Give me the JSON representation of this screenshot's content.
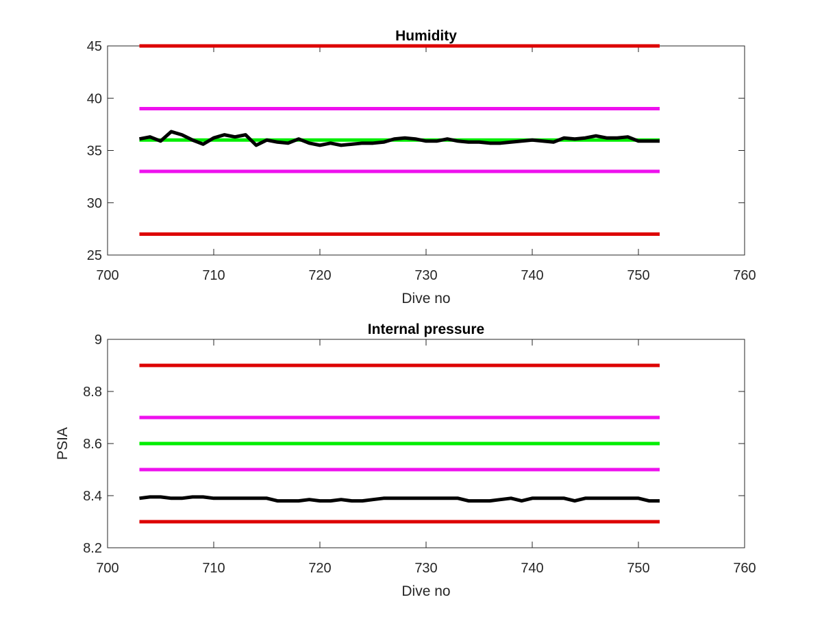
{
  "chart_data": [
    {
      "type": "line",
      "title": "Humidity",
      "xlabel": "Dive no",
      "ylabel": "",
      "xlim": [
        700,
        760
      ],
      "ylim": [
        25,
        45
      ],
      "xticks": [
        700,
        710,
        720,
        730,
        740,
        750,
        760
      ],
      "yticks": [
        25,
        30,
        35,
        40,
        45
      ],
      "xtick_labels": [
        "700",
        "710",
        "720",
        "730",
        "740",
        "750",
        "760"
      ],
      "ytick_labels": [
        "25",
        "30",
        "35",
        "40",
        "45"
      ],
      "grid": false,
      "series": [
        {
          "color": "#dd0000",
          "x": [
            703,
            752
          ],
          "y": [
            45,
            45
          ]
        },
        {
          "color": "#ee11ee",
          "x": [
            703,
            752
          ],
          "y": [
            39,
            39
          ]
        },
        {
          "color": "#00ee00",
          "x": [
            703,
            752
          ],
          "y": [
            36,
            36
          ]
        },
        {
          "color": "#ee11ee",
          "x": [
            703,
            752
          ],
          "y": [
            33,
            33
          ]
        },
        {
          "color": "#dd0000",
          "x": [
            703,
            752
          ],
          "y": [
            27,
            27
          ]
        },
        {
          "color": "#000000",
          "x": [
            703,
            704,
            705,
            706,
            707,
            708,
            709,
            710,
            711,
            712,
            713,
            714,
            715,
            716,
            717,
            718,
            719,
            720,
            721,
            722,
            723,
            724,
            725,
            726,
            727,
            728,
            729,
            730,
            731,
            732,
            733,
            734,
            735,
            736,
            737,
            738,
            739,
            740,
            741,
            742,
            743,
            744,
            745,
            746,
            747,
            748,
            749,
            750,
            751,
            752
          ],
          "y": [
            36.1,
            36.3,
            35.9,
            36.8,
            36.5,
            36.0,
            35.6,
            36.2,
            36.5,
            36.3,
            36.5,
            35.5,
            36.0,
            35.8,
            35.7,
            36.1,
            35.7,
            35.5,
            35.7,
            35.5,
            35.6,
            35.7,
            35.7,
            35.8,
            36.1,
            36.2,
            36.1,
            35.9,
            35.9,
            36.1,
            35.9,
            35.8,
            35.8,
            35.7,
            35.7,
            35.8,
            35.9,
            36.0,
            35.9,
            35.8,
            36.2,
            36.1,
            36.2,
            36.4,
            36.2,
            36.2,
            36.3,
            35.9,
            35.9,
            35.9
          ]
        }
      ]
    },
    {
      "type": "line",
      "title": "Internal pressure",
      "xlabel": "Dive no",
      "ylabel": "PSIA",
      "xlim": [
        700,
        760
      ],
      "ylim": [
        8.2,
        9
      ],
      "xticks": [
        700,
        710,
        720,
        730,
        740,
        750,
        760
      ],
      "yticks": [
        8.2,
        8.4,
        8.6,
        8.8,
        9
      ],
      "xtick_labels": [
        "700",
        "710",
        "720",
        "730",
        "740",
        "750",
        "760"
      ],
      "ytick_labels": [
        "8.2",
        "8.4",
        "8.6",
        "8.8",
        "9"
      ],
      "grid": false,
      "series": [
        {
          "color": "#dd0000",
          "x": [
            703,
            752
          ],
          "y": [
            8.9,
            8.9
          ]
        },
        {
          "color": "#ee11ee",
          "x": [
            703,
            752
          ],
          "y": [
            8.7,
            8.7
          ]
        },
        {
          "color": "#00ee00",
          "x": [
            703,
            752
          ],
          "y": [
            8.6,
            8.6
          ]
        },
        {
          "color": "#ee11ee",
          "x": [
            703,
            752
          ],
          "y": [
            8.5,
            8.5
          ]
        },
        {
          "color": "#dd0000",
          "x": [
            703,
            752
          ],
          "y": [
            8.3,
            8.3
          ]
        },
        {
          "color": "#000000",
          "x": [
            703,
            704,
            705,
            706,
            707,
            708,
            709,
            710,
            711,
            712,
            713,
            714,
            715,
            716,
            717,
            718,
            719,
            720,
            721,
            722,
            723,
            724,
            725,
            726,
            727,
            728,
            729,
            730,
            731,
            732,
            733,
            734,
            735,
            736,
            737,
            738,
            739,
            740,
            741,
            742,
            743,
            744,
            745,
            746,
            747,
            748,
            749,
            750,
            751,
            752
          ],
          "y": [
            8.39,
            8.395,
            8.395,
            8.39,
            8.39,
            8.395,
            8.395,
            8.39,
            8.39,
            8.39,
            8.39,
            8.39,
            8.39,
            8.38,
            8.38,
            8.38,
            8.385,
            8.38,
            8.38,
            8.385,
            8.38,
            8.38,
            8.385,
            8.39,
            8.39,
            8.39,
            8.39,
            8.39,
            8.39,
            8.39,
            8.39,
            8.38,
            8.38,
            8.38,
            8.385,
            8.39,
            8.38,
            8.39,
            8.39,
            8.39,
            8.39,
            8.38,
            8.39,
            8.39,
            8.39,
            8.39,
            8.39,
            8.39,
            8.38,
            8.38
          ]
        }
      ]
    }
  ]
}
